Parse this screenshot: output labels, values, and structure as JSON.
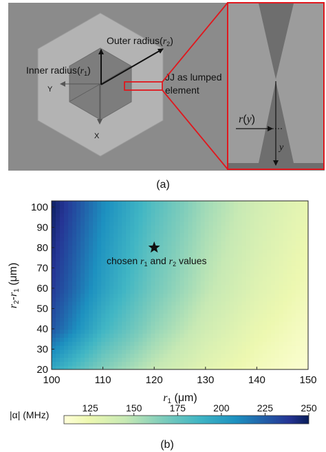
{
  "panel_a": {
    "outer_radius_text": "Outer radius",
    "outer_radius_symbol": "r",
    "outer_radius_sub": "2",
    "inner_radius_text": "Inner radius",
    "inner_radius_symbol": "r",
    "inner_radius_sub": "1",
    "jj_line1": "JJ as lumped",
    "jj_line2": "element",
    "axis_y": "Y",
    "axis_x": "X",
    "inset_r": "r",
    "inset_y_arg": "y",
    "inset_y": "y",
    "caption": "(a)",
    "colors": {
      "background": "#8b8b8b",
      "outer_hex": "#b3b3b3",
      "inner_hex": "#7d7d7d",
      "highlight": "#e0171d"
    }
  },
  "panel_b": {
    "caption": "(b)",
    "annotation": "chosen r1 and r2 values",
    "annotation_parts": {
      "pre": "chosen ",
      "r": "r",
      "sub1": "1",
      "mid": " and ",
      "sub2": "2",
      "post": " values"
    },
    "ylabel_r2": "r",
    "ylabel_sub2": "2",
    "ylabel_dash": "-",
    "ylabel_r1": "r",
    "ylabel_sub1": "1",
    "ylabel_unit": " (μm)",
    "xlabel_r": "r",
    "xlabel_sub": "1",
    "xlabel_unit": " (μm)",
    "colorbar_label": "|α| (MHz)",
    "colorbar_ticks": [
      "125",
      "150",
      "175",
      "200",
      "225",
      "250"
    ]
  },
  "chart_data": {
    "type": "heatmap",
    "title": "",
    "xlabel": "r1 (μm)",
    "ylabel": "r2-r1 (μm)",
    "x_ticks": [
      100,
      110,
      120,
      130,
      140,
      150
    ],
    "y_ticks": [
      20,
      30,
      40,
      50,
      60,
      70,
      80,
      90,
      100
    ],
    "xlim": [
      100,
      150
    ],
    "ylim": [
      20,
      103
    ],
    "colorbar": {
      "label": "|α| (MHz)",
      "range": [
        110,
        250
      ],
      "ticks": [
        125,
        150,
        175,
        200,
        225,
        250
      ]
    },
    "grid_x": [
      100,
      110,
      120,
      130,
      140,
      150
    ],
    "grid_y": [
      20,
      40,
      60,
      80,
      100
    ],
    "values": [
      [
        195,
        165,
        145,
        130,
        120,
        113
      ],
      [
        228,
        188,
        160,
        140,
        126,
        117
      ],
      [
        238,
        200,
        170,
        148,
        132,
        121
      ],
      [
        243,
        205,
        175,
        152,
        136,
        124
      ],
      [
        248,
        210,
        180,
        156,
        139,
        127
      ]
    ],
    "marker": {
      "x": 120,
      "y": 80,
      "symbol": "star",
      "label": "chosen r1 and r2 values"
    }
  }
}
